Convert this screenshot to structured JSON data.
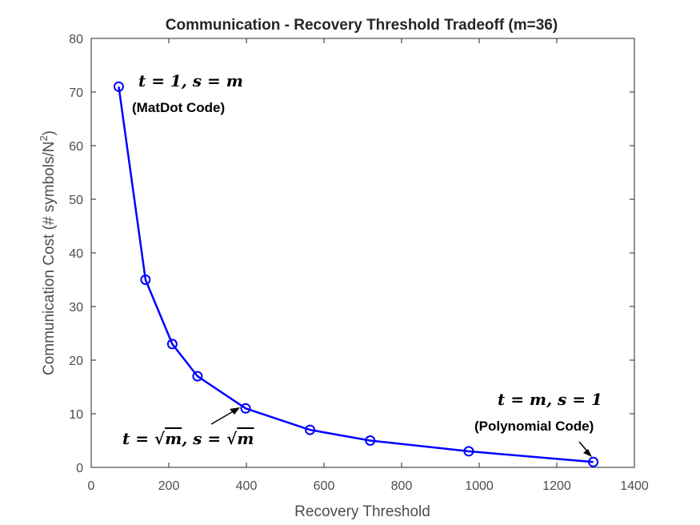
{
  "chart_data": {
    "type": "line",
    "title": "Communication - Recovery Threshold Tradeoff (m=36)",
    "xlabel": "Recovery Threshold",
    "ylabel_main": "Communication Cost (# symbols/N",
    "ylabel_sup": "2",
    "ylabel_end": ")",
    "xlim": [
      0,
      1400
    ],
    "ylim": [
      0,
      80
    ],
    "xticks": [
      0,
      200,
      400,
      600,
      800,
      1000,
      1200,
      1400
    ],
    "yticks": [
      0,
      10,
      20,
      30,
      40,
      50,
      60,
      70,
      80
    ],
    "grid": false,
    "series": [
      {
        "color": "#0000ff",
        "marker": "circle",
        "x": [
          71,
          140,
          209,
          274,
          398,
          564,
          719,
          973,
          1294
        ],
        "y": [
          71,
          35,
          23,
          17,
          11,
          7,
          5,
          3,
          1
        ]
      }
    ],
    "annotations": {
      "matdot_math": "t = 1, s = m",
      "matdot_label": "(MatDot Code)",
      "sqrt_math_t": "t = ",
      "sqrt_math_s": ", s = ",
      "sqrt_symbol": "√",
      "sqrt_var": "m",
      "poly_math": "t = m, s = 1",
      "poly_label": "(Polynomial Code)"
    }
  }
}
